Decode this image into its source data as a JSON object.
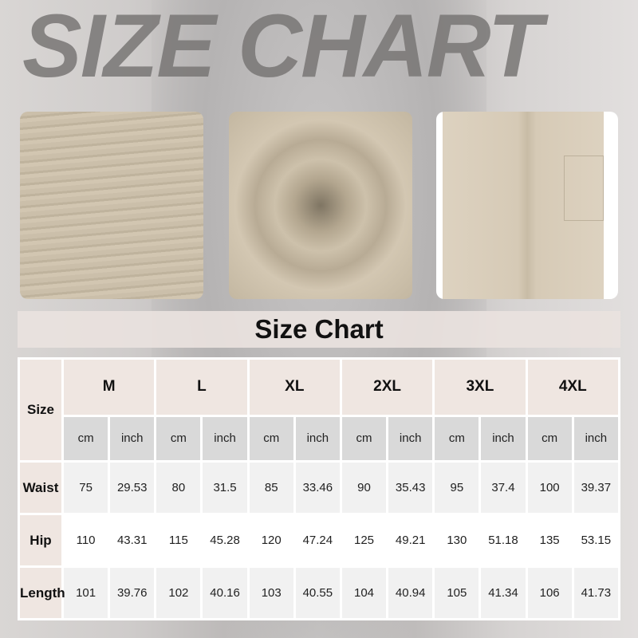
{
  "title": "SIZE CHART",
  "banner": "Size Chart",
  "table": {
    "corner": "Size",
    "sizes": [
      "M",
      "L",
      "XL",
      "2XL",
      "3XL",
      "4XL"
    ],
    "units": [
      "cm",
      "inch"
    ],
    "rows": [
      {
        "label": "Waist",
        "values": [
          "75",
          "29.53",
          "80",
          "31.5",
          "85",
          "33.46",
          "90",
          "35.43",
          "95",
          "37.4",
          "100",
          "39.37"
        ]
      },
      {
        "label": "Hip",
        "values": [
          "110",
          "43.31",
          "115",
          "45.28",
          "120",
          "47.24",
          "125",
          "49.21",
          "130",
          "51.18",
          "135",
          "53.15"
        ]
      },
      {
        "label": "Length",
        "values": [
          "101",
          "39.76",
          "102",
          "40.16",
          "103",
          "40.55",
          "104",
          "40.94",
          "105",
          "41.34",
          "106",
          "41.73"
        ]
      }
    ]
  },
  "colors": {
    "header": "#efe6e1",
    "unit_row": "#d9d9d9",
    "fabric": "#cbbfaa"
  }
}
